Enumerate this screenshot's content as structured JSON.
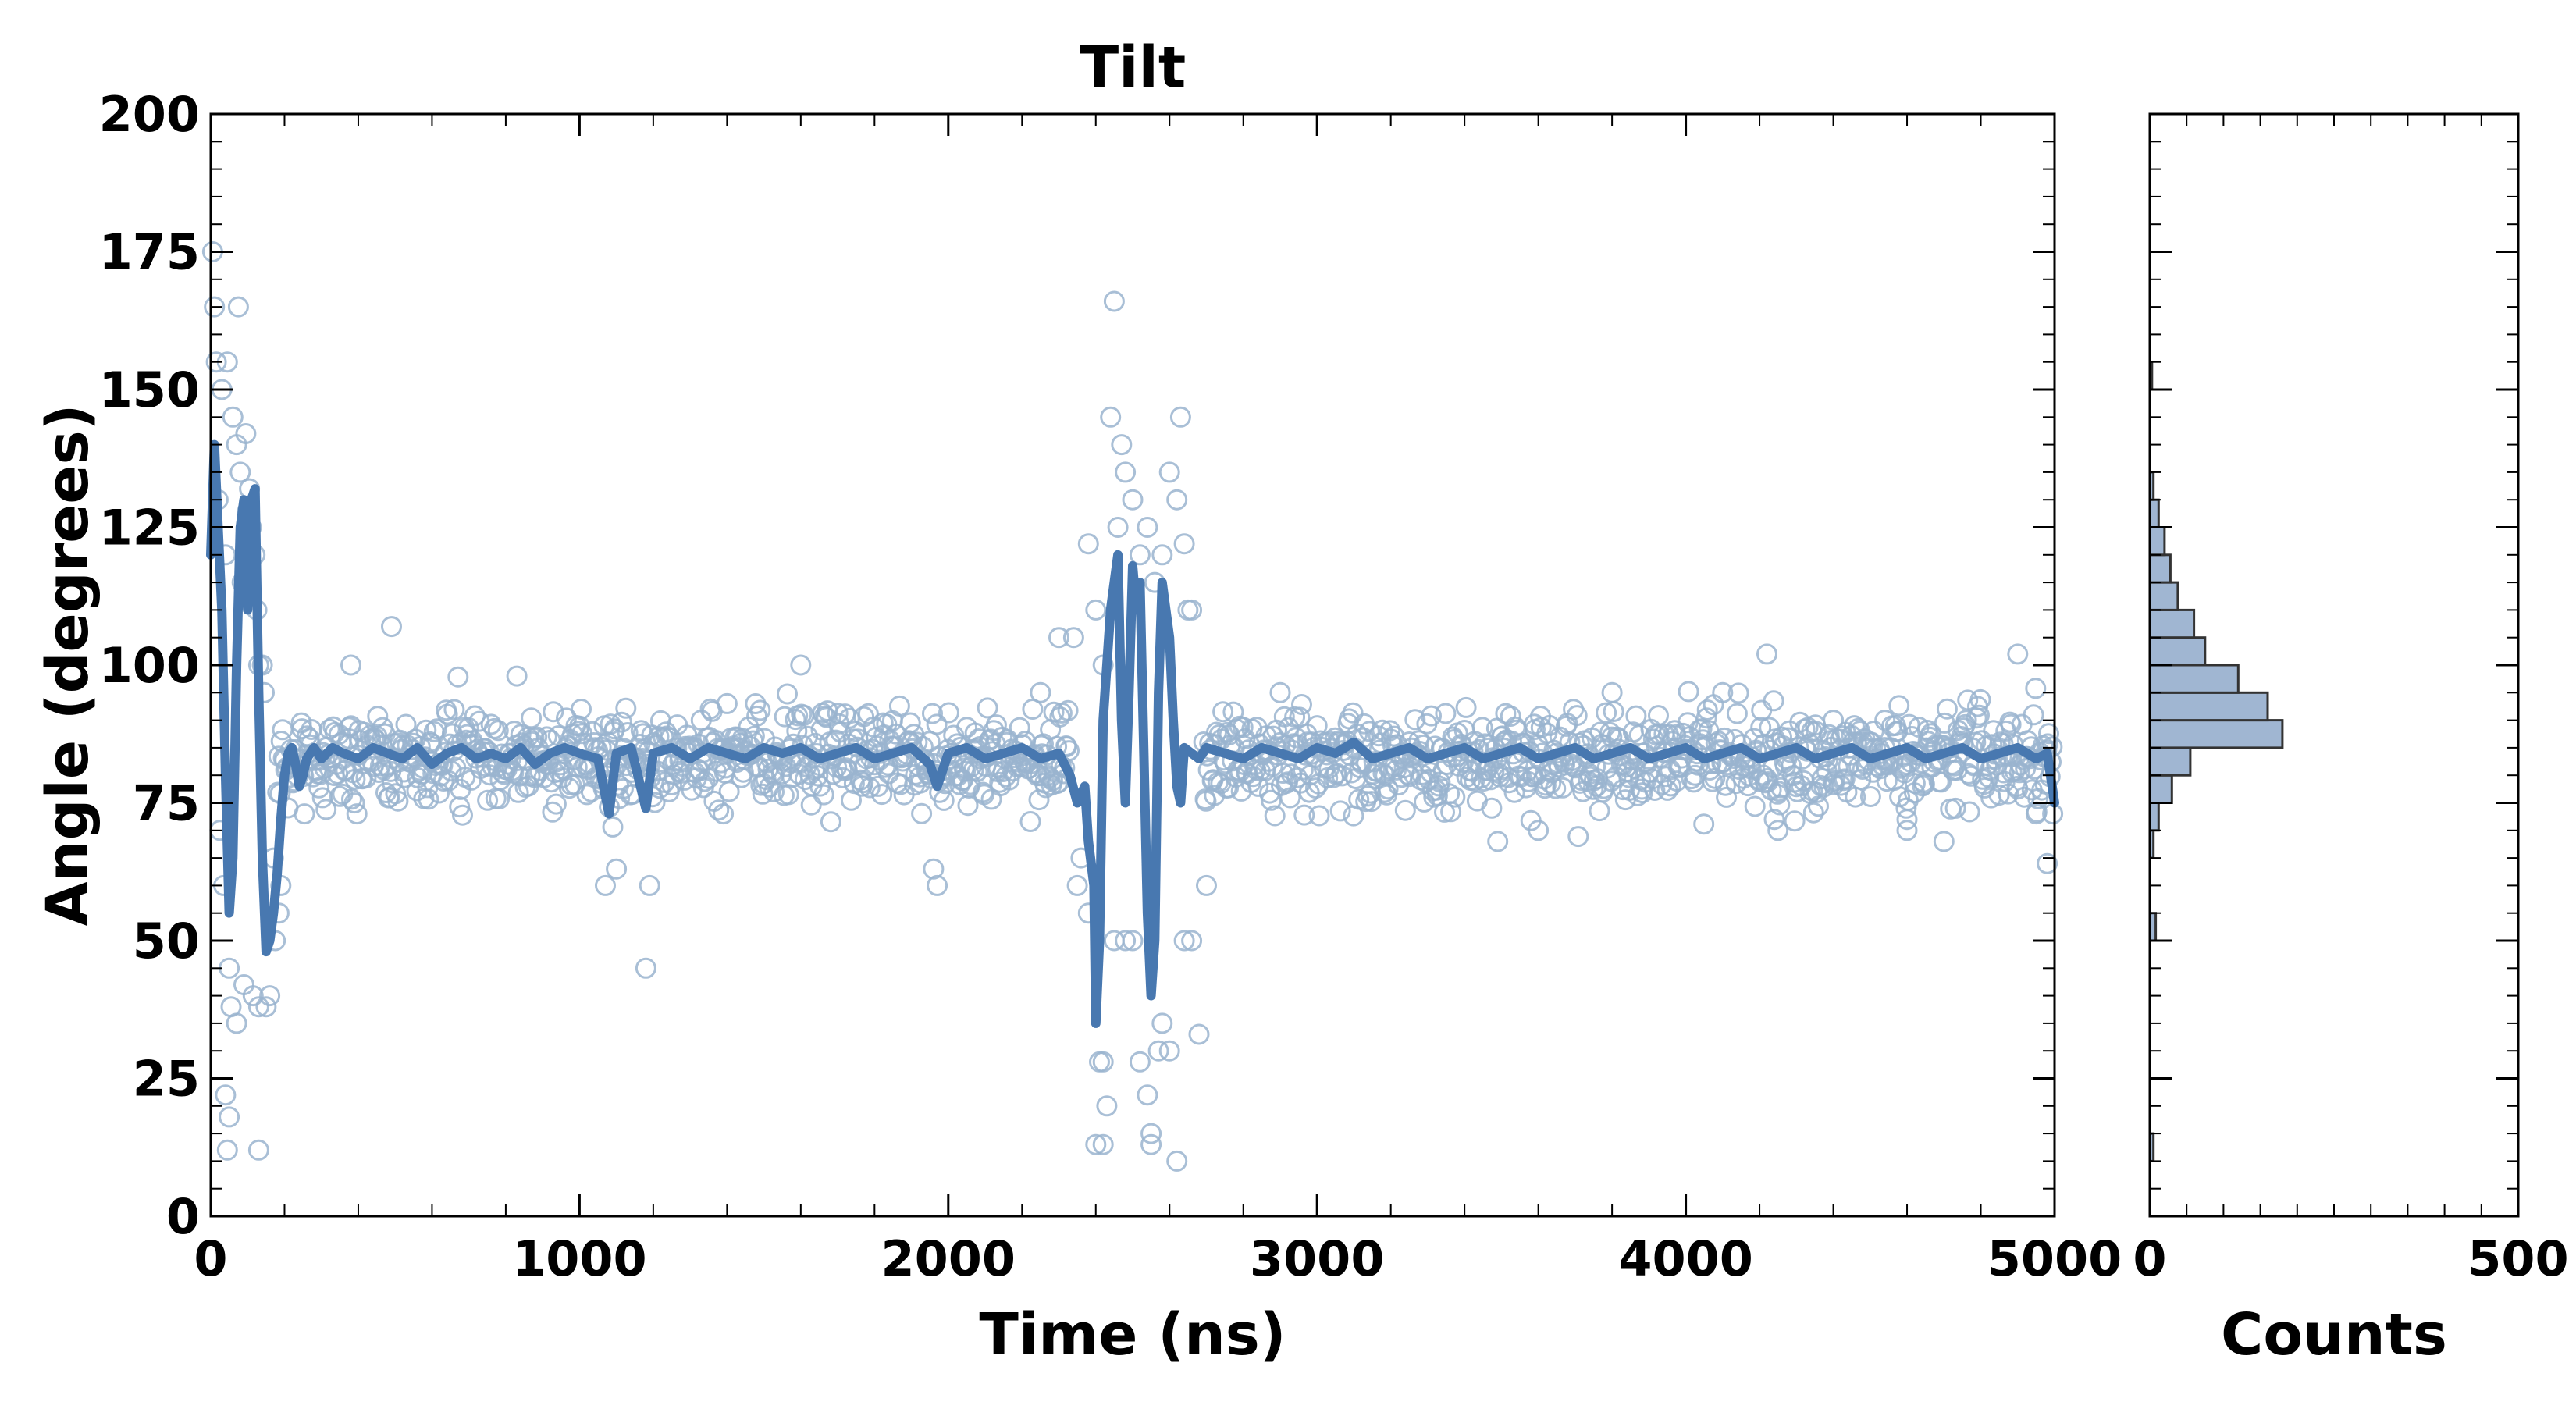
{
  "chart_data": {
    "type": "scatter",
    "title": "Tilt",
    "main": {
      "xlabel": "Time (ns)",
      "ylabel": "Angle (degrees)",
      "xlim": [
        0,
        5000
      ],
      "ylim": [
        0,
        200
      ],
      "xticks": [
        "0",
        "1000",
        "2000",
        "3000",
        "4000",
        "5000"
      ],
      "yticks": [
        "0",
        "25",
        "50",
        "75",
        "100",
        "125",
        "150",
        "175",
        "200"
      ],
      "series": [
        {
          "kind": "scatter",
          "marker": "open-circle",
          "color": "#9ab4cf",
          "baseline_mean": 83,
          "baseline_spread": 7,
          "points": [
            [
              5,
              175
            ],
            [
              10,
              165
            ],
            [
              15,
              155
            ],
            [
              30,
              150
            ],
            [
              45,
              155
            ],
            [
              60,
              145
            ],
            [
              70,
              140
            ],
            [
              80,
              135
            ],
            [
              95,
              142
            ],
            [
              100,
              128
            ],
            [
              110,
              125
            ],
            [
              120,
              120
            ],
            [
              130,
              100
            ],
            [
              145,
              95
            ],
            [
              20,
              130
            ],
            [
              40,
              120
            ],
            [
              85,
              115
            ],
            [
              105,
              132
            ],
            [
              125,
              110
            ],
            [
              140,
              100
            ],
            [
              25,
              70
            ],
            [
              35,
              60
            ],
            [
              50,
              45
            ],
            [
              55,
              38
            ],
            [
              70,
              35
            ],
            [
              90,
              42
            ],
            [
              115,
              40
            ],
            [
              130,
              38
            ],
            [
              150,
              38
            ],
            [
              160,
              40
            ],
            [
              175,
              50
            ],
            [
              185,
              55
            ],
            [
              40,
              22
            ],
            [
              50,
              18
            ],
            [
              45,
              12
            ],
            [
              130,
              12
            ],
            [
              75,
              165
            ],
            [
              170,
              65
            ],
            [
              190,
              60
            ],
            [
              2340,
              105
            ],
            [
              2380,
              122
            ],
            [
              2400,
              110
            ],
            [
              2420,
              100
            ],
            [
              2440,
              145
            ],
            [
              2460,
              125
            ],
            [
              2470,
              140
            ],
            [
              2480,
              135
            ],
            [
              2500,
              130
            ],
            [
              2520,
              120
            ],
            [
              2540,
              125
            ],
            [
              2560,
              115
            ],
            [
              2580,
              120
            ],
            [
              2600,
              135
            ],
            [
              2620,
              130
            ],
            [
              2630,
              145
            ],
            [
              2650,
              110
            ],
            [
              2450,
              166
            ],
            [
              2640,
              122
            ],
            [
              2660,
              110
            ],
            [
              2410,
              28
            ],
            [
              2420,
              28
            ],
            [
              2430,
              20
            ],
            [
              2450,
              50
            ],
            [
              2480,
              50
            ],
            [
              2500,
              50
            ],
            [
              2520,
              28
            ],
            [
              2540,
              22
            ],
            [
              2550,
              15
            ],
            [
              2570,
              30
            ],
            [
              2580,
              35
            ],
            [
              2600,
              30
            ],
            [
              2620,
              10
            ],
            [
              2640,
              50
            ],
            [
              2660,
              50
            ],
            [
              2680,
              33
            ],
            [
              2400,
              13
            ],
            [
              2420,
              13
            ],
            [
              2550,
              13
            ],
            [
              2350,
              60
            ],
            [
              2360,
              65
            ],
            [
              2380,
              55
            ],
            [
              2300,
              105
            ],
            [
              2700,
              60
            ],
            [
              380,
              100
            ],
            [
              490,
              107
            ],
            [
              830,
              98
            ],
            [
              1070,
              60
            ],
            [
              1180,
              45
            ],
            [
              1190,
              60
            ],
            [
              1100,
              63
            ],
            [
              1600,
              100
            ],
            [
              1960,
              63
            ],
            [
              1970,
              60
            ],
            [
              2250,
              95
            ],
            [
              3490,
              68
            ],
            [
              3500,
              87
            ],
            [
              4100,
              95
            ],
            [
              4220,
              102
            ],
            [
              4240,
              72
            ],
            [
              4540,
              90
            ],
            [
              4600,
              72
            ],
            [
              4900,
              102
            ],
            [
              4950,
              73
            ],
            [
              4980,
              64
            ],
            [
              4995,
              73
            ],
            [
              4250,
              70
            ],
            [
              4700,
              68
            ],
            [
              1390,
              73
            ],
            [
              1400,
              93
            ],
            [
              1330,
              90
            ],
            [
              2900,
              95
            ],
            [
              3800,
              95
            ],
            [
              4400,
              90
            ],
            [
              4600,
              70
            ],
            [
              3600,
              70
            ]
          ]
        },
        {
          "kind": "line",
          "color": "#4878b0",
          "points": [
            [
              0,
              120
            ],
            [
              10,
              140
            ],
            [
              20,
              125
            ],
            [
              30,
              110
            ],
            [
              40,
              80
            ],
            [
              50,
              55
            ],
            [
              60,
              65
            ],
            [
              70,
              100
            ],
            [
              80,
              125
            ],
            [
              90,
              130
            ],
            [
              100,
              110
            ],
            [
              110,
              130
            ],
            [
              120,
              132
            ],
            [
              130,
              95
            ],
            [
              140,
              65
            ],
            [
              150,
              48
            ],
            [
              160,
              50
            ],
            [
              170,
              55
            ],
            [
              180,
              62
            ],
            [
              190,
              72
            ],
            [
              200,
              80
            ],
            [
              210,
              84
            ],
            [
              220,
              85
            ],
            [
              230,
              82
            ],
            [
              240,
              78
            ],
            [
              250,
              80
            ],
            [
              260,
              83
            ],
            [
              280,
              85
            ],
            [
              300,
              83
            ],
            [
              330,
              85
            ],
            [
              360,
              84
            ],
            [
              400,
              83
            ],
            [
              440,
              85
            ],
            [
              480,
              84
            ],
            [
              520,
              83
            ],
            [
              560,
              85
            ],
            [
              600,
              82
            ],
            [
              640,
              84
            ],
            [
              680,
              85
            ],
            [
              720,
              83
            ],
            [
              760,
              84
            ],
            [
              800,
              83
            ],
            [
              840,
              85
            ],
            [
              880,
              82
            ],
            [
              920,
              84
            ],
            [
              960,
              85
            ],
            [
              1000,
              84
            ],
            [
              1050,
              83
            ],
            [
              1080,
              73
            ],
            [
              1100,
              84
            ],
            [
              1140,
              85
            ],
            [
              1180,
              74
            ],
            [
              1200,
              84
            ],
            [
              1250,
              85
            ],
            [
              1300,
              83
            ],
            [
              1350,
              85
            ],
            [
              1400,
              84
            ],
            [
              1450,
              83
            ],
            [
              1500,
              85
            ],
            [
              1550,
              84
            ],
            [
              1600,
              85
            ],
            [
              1650,
              83
            ],
            [
              1700,
              84
            ],
            [
              1750,
              85
            ],
            [
              1800,
              83
            ],
            [
              1850,
              84
            ],
            [
              1900,
              85
            ],
            [
              1950,
              82
            ],
            [
              1970,
              78
            ],
            [
              2000,
              84
            ],
            [
              2050,
              85
            ],
            [
              2100,
              83
            ],
            [
              2150,
              84
            ],
            [
              2200,
              85
            ],
            [
              2250,
              83
            ],
            [
              2300,
              84
            ],
            [
              2330,
              80
            ],
            [
              2350,
              75
            ],
            [
              2370,
              78
            ],
            [
              2380,
              68
            ],
            [
              2395,
              60
            ],
            [
              2400,
              35
            ],
            [
              2410,
              50
            ],
            [
              2420,
              90
            ],
            [
              2440,
              110
            ],
            [
              2460,
              120
            ],
            [
              2470,
              90
            ],
            [
              2480,
              75
            ],
            [
              2490,
              95
            ],
            [
              2500,
              118
            ],
            [
              2510,
              110
            ],
            [
              2520,
              115
            ],
            [
              2530,
              85
            ],
            [
              2540,
              55
            ],
            [
              2550,
              40
            ],
            [
              2560,
              50
            ],
            [
              2570,
              95
            ],
            [
              2580,
              115
            ],
            [
              2590,
              110
            ],
            [
              2600,
              105
            ],
            [
              2610,
              90
            ],
            [
              2620,
              78
            ],
            [
              2630,
              75
            ],
            [
              2640,
              85
            ],
            [
              2660,
              84
            ],
            [
              2680,
              83
            ],
            [
              2700,
              85
            ],
            [
              2750,
              84
            ],
            [
              2800,
              83
            ],
            [
              2850,
              85
            ],
            [
              2900,
              84
            ],
            [
              2950,
              83
            ],
            [
              3000,
              85
            ],
            [
              3050,
              84
            ],
            [
              3100,
              86
            ],
            [
              3150,
              83
            ],
            [
              3200,
              84
            ],
            [
              3250,
              85
            ],
            [
              3300,
              83
            ],
            [
              3350,
              84
            ],
            [
              3400,
              85
            ],
            [
              3450,
              83
            ],
            [
              3500,
              84
            ],
            [
              3550,
              85
            ],
            [
              3600,
              83
            ],
            [
              3650,
              84
            ],
            [
              3700,
              85
            ],
            [
              3750,
              83
            ],
            [
              3800,
              84
            ],
            [
              3850,
              85
            ],
            [
              3900,
              83
            ],
            [
              3950,
              84
            ],
            [
              4000,
              85
            ],
            [
              4050,
              83
            ],
            [
              4100,
              84
            ],
            [
              4150,
              85
            ],
            [
              4200,
              83
            ],
            [
              4250,
              84
            ],
            [
              4300,
              85
            ],
            [
              4350,
              83
            ],
            [
              4400,
              84
            ],
            [
              4450,
              85
            ],
            [
              4500,
              83
            ],
            [
              4550,
              84
            ],
            [
              4600,
              85
            ],
            [
              4650,
              83
            ],
            [
              4700,
              84
            ],
            [
              4750,
              85
            ],
            [
              4800,
              83
            ],
            [
              4850,
              84
            ],
            [
              4900,
              85
            ],
            [
              4950,
              83
            ],
            [
              4980,
              84
            ],
            [
              5000,
              75
            ]
          ]
        }
      ]
    },
    "histogram": {
      "type": "bar",
      "orientation": "horizontal",
      "xlabel": "Counts",
      "xlim": [
        0,
        500
      ],
      "xticks": [
        "0",
        "500"
      ],
      "color": "#a0b6d2",
      "edgecolor": "#333333",
      "bins": [
        [
          10,
          5
        ],
        [
          50,
          8
        ],
        [
          65,
          5
        ],
        [
          70,
          12
        ],
        [
          75,
          30
        ],
        [
          80,
          55
        ],
        [
          85,
          180
        ],
        [
          90,
          160
        ],
        [
          95,
          120
        ],
        [
          100,
          75
        ],
        [
          105,
          60
        ],
        [
          110,
          38
        ],
        [
          115,
          28
        ],
        [
          120,
          20
        ],
        [
          125,
          12
        ],
        [
          130,
          5
        ],
        [
          150,
          3
        ]
      ]
    }
  }
}
